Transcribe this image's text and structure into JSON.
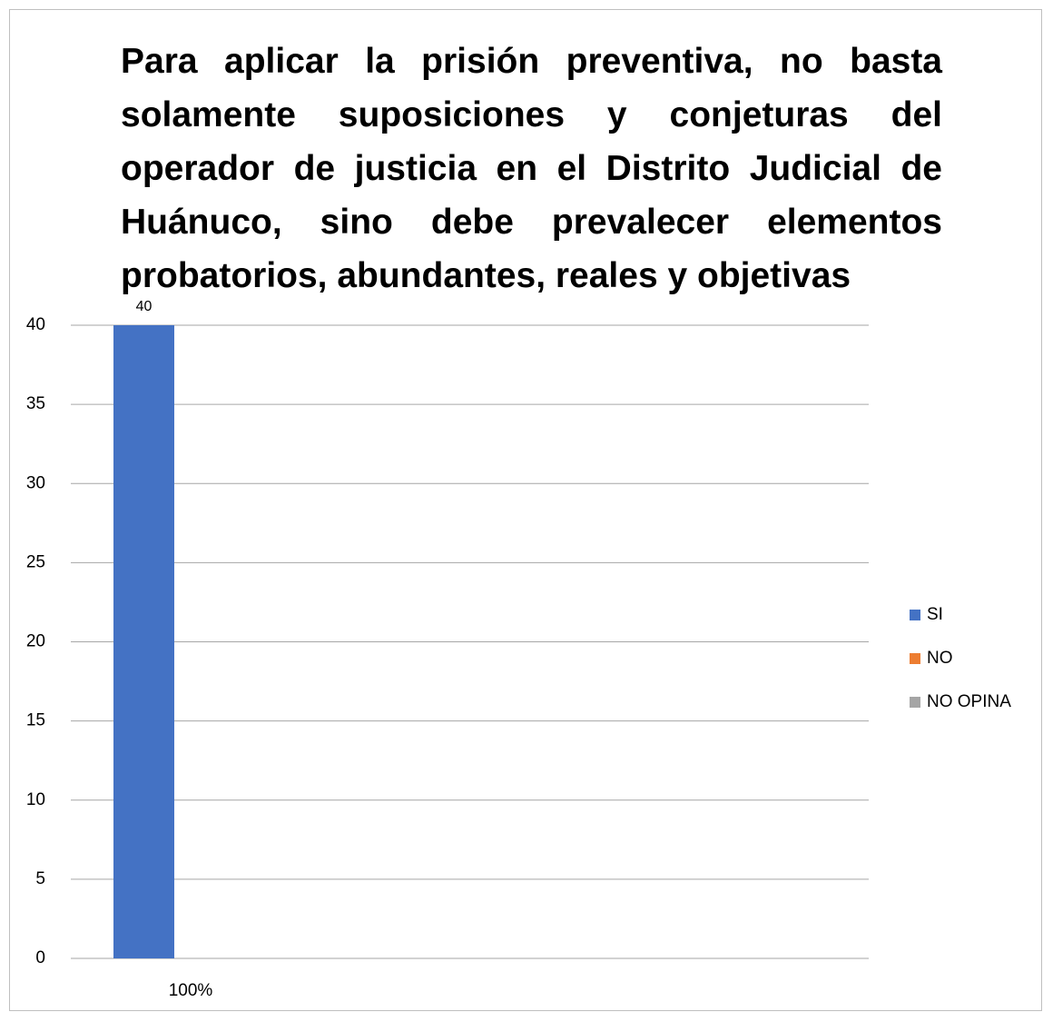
{
  "chart_data": {
    "type": "bar",
    "title": "Para aplicar la prisión preventiva, no basta solamente suposiciones y conjeturas del operador de justicia en el Distrito Judicial de Huánuco, sino debe prevalecer elementos probatorios, abundantes, reales y objetivas",
    "categories": [
      "100%"
    ],
    "series": [
      {
        "name": "SI",
        "color": "#4472c4",
        "values": [
          40
        ],
        "value_labels": [
          "40"
        ]
      },
      {
        "name": "NO",
        "color": "#ed7d31",
        "values": [
          0
        ]
      },
      {
        "name": "NO OPINA",
        "color": "#a5a5a5",
        "values": [
          0
        ]
      }
    ],
    "ylim": [
      0,
      40
    ],
    "yticks": [
      0,
      5,
      10,
      15,
      20,
      25,
      30,
      35,
      40
    ],
    "grid": true,
    "legend": "right"
  }
}
